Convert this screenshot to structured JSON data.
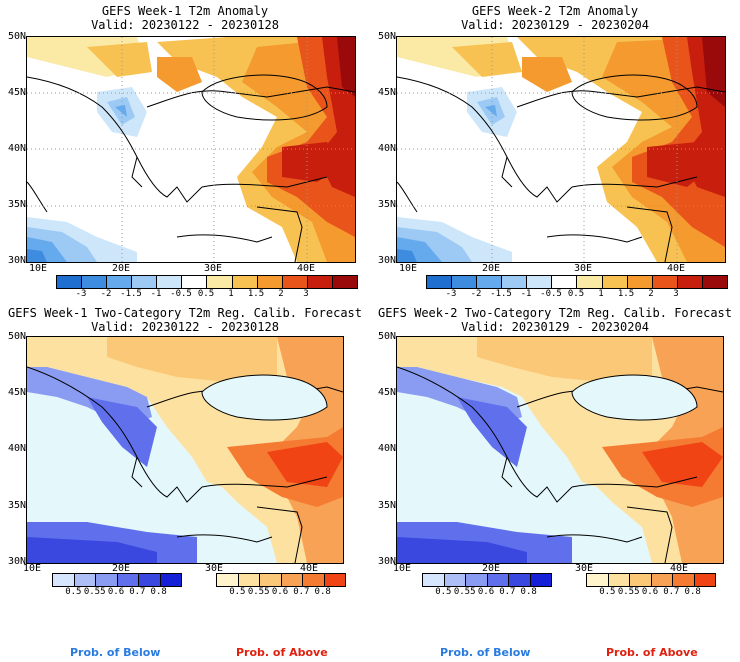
{
  "panels": [
    {
      "title": "GEFS Week-1 T2m Anomaly",
      "valid": "Valid: 20230122 - 20230128"
    },
    {
      "title": "GEFS Week-2 T2m Anomaly",
      "valid": "Valid: 20230129 - 20230204"
    },
    {
      "title": "GEFS Week-1 Two-Category T2m Reg. Calib. Forecast",
      "valid": "Valid: 20230122 - 20230128"
    },
    {
      "title": "GEFS Week-2 Two-Category T2m Reg. Calib. Forecast",
      "valid": "Valid: 20230129 - 20230204"
    }
  ],
  "axes": {
    "lat_labels": [
      "50N",
      "45N",
      "40N",
      "35N",
      "30N"
    ],
    "lon_labels": [
      "10E",
      "20E",
      "30E",
      "40E"
    ]
  },
  "anomaly_colorbar": {
    "labels": [
      "-3",
      "-2",
      "-1.5",
      "-1",
      "-0.5",
      "0.5",
      "1",
      "1.5",
      "2",
      "3"
    ],
    "colors": [
      "#1e6fd0",
      "#3d8ce0",
      "#66aaee",
      "#9ccaf4",
      "#cde6fa",
      "#ffffff",
      "#fbe9a6",
      "#f8c253",
      "#f49a2e",
      "#e8541a",
      "#c81e0e",
      "#9a0a0a"
    ]
  },
  "prob_colorbar": {
    "below_labels": [
      "0.5",
      "0.55",
      "0.6",
      "0.7",
      "0.8"
    ],
    "below_colors": [
      "#d6e6ff",
      "#aebff8",
      "#8a9cf2",
      "#6070ec",
      "#3a48e0",
      "#1620d6"
    ],
    "above_labels": [
      "0.5",
      "0.55",
      "0.6",
      "0.7",
      "0.8"
    ],
    "above_colors": [
      "#fff4cc",
      "#fde1a0",
      "#fbc878",
      "#f8a255",
      "#f57a32",
      "#f04414"
    ]
  },
  "footer": {
    "below_label": "Prob. of Below",
    "below_color": "#2a7be0",
    "above_label": "Prob. of Above",
    "above_color": "#e02010"
  }
}
